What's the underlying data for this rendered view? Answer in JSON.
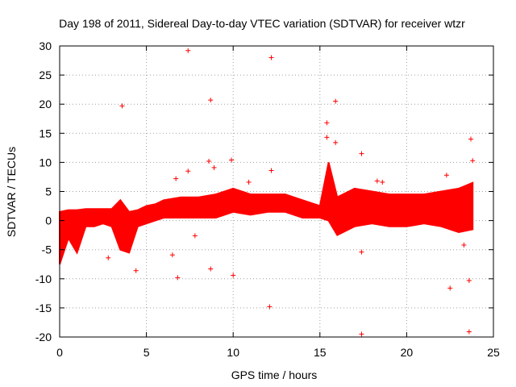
{
  "chart_data": {
    "type": "scatter",
    "title": "Day 198 of 2011, Sidereal Day-to-day VTEC variation (SDTVAR) for receiver wtzr",
    "xlabel": "GPS time / hours",
    "ylabel": "SDTVAR / TECUs",
    "xlim": [
      0,
      25
    ],
    "ylim": [
      -20,
      30
    ],
    "xticks": [
      0,
      5,
      10,
      15,
      20,
      25
    ],
    "yticks": [
      -20,
      -15,
      -10,
      -5,
      0,
      5,
      10,
      15,
      20,
      25,
      30
    ],
    "grid": true,
    "marker": "+",
    "color": "#ff0000",
    "series": [
      {
        "name": "SDTVAR",
        "dense_band": [
          {
            "x": 0.0,
            "lo": -7.5,
            "hi": 1.5
          },
          {
            "x": 0.5,
            "lo": -3.0,
            "hi": 1.8
          },
          {
            "x": 1.0,
            "lo": -5.5,
            "hi": 1.8
          },
          {
            "x": 1.5,
            "lo": -1.0,
            "hi": 2.0
          },
          {
            "x": 2.0,
            "lo": -1.0,
            "hi": 2.0
          },
          {
            "x": 2.5,
            "lo": -0.5,
            "hi": 2.0
          },
          {
            "x": 3.0,
            "lo": -1.0,
            "hi": 2.0
          },
          {
            "x": 3.5,
            "lo": -5.0,
            "hi": 3.5
          },
          {
            "x": 4.0,
            "lo": -5.5,
            "hi": 1.5
          },
          {
            "x": 4.5,
            "lo": -1.0,
            "hi": 1.8
          },
          {
            "x": 5.0,
            "lo": -0.5,
            "hi": 2.5
          },
          {
            "x": 5.5,
            "lo": 0.0,
            "hi": 2.8
          },
          {
            "x": 6.0,
            "lo": 0.5,
            "hi": 3.5
          },
          {
            "x": 7.0,
            "lo": 0.5,
            "hi": 4.0
          },
          {
            "x": 8.0,
            "lo": 0.5,
            "hi": 4.0
          },
          {
            "x": 9.0,
            "lo": 0.5,
            "hi": 4.5
          },
          {
            "x": 10.0,
            "lo": 1.5,
            "hi": 5.5
          },
          {
            "x": 11.0,
            "lo": 1.0,
            "hi": 4.5
          },
          {
            "x": 12.0,
            "lo": 1.5,
            "hi": 4.5
          },
          {
            "x": 13.0,
            "lo": 1.5,
            "hi": 4.5
          },
          {
            "x": 14.0,
            "lo": 0.5,
            "hi": 3.5
          },
          {
            "x": 15.0,
            "lo": 0.5,
            "hi": 2.5
          },
          {
            "x": 15.5,
            "lo": 0.0,
            "hi": 10.0
          },
          {
            "x": 16.0,
            "lo": -2.5,
            "hi": 4.0
          },
          {
            "x": 17.0,
            "lo": -1.0,
            "hi": 5.5
          },
          {
            "x": 18.0,
            "lo": -0.5,
            "hi": 5.0
          },
          {
            "x": 19.0,
            "lo": -1.0,
            "hi": 4.5
          },
          {
            "x": 20.0,
            "lo": -1.0,
            "hi": 4.5
          },
          {
            "x": 21.0,
            "lo": -0.5,
            "hi": 4.5
          },
          {
            "x": 22.0,
            "lo": -1.0,
            "hi": 5.0
          },
          {
            "x": 23.0,
            "lo": -2.0,
            "hi": 5.5
          },
          {
            "x": 23.8,
            "lo": -1.5,
            "hi": 6.5
          }
        ],
        "outliers": [
          {
            "x": 3.6,
            "y": 19.7
          },
          {
            "x": 7.4,
            "y": 29.2
          },
          {
            "x": 8.7,
            "y": 20.7
          },
          {
            "x": 12.2,
            "y": 28.0
          },
          {
            "x": 15.9,
            "y": 20.5
          },
          {
            "x": 15.4,
            "y": 16.8
          },
          {
            "x": 15.4,
            "y": 14.3
          },
          {
            "x": 15.9,
            "y": 13.4
          },
          {
            "x": 17.4,
            "y": 11.5
          },
          {
            "x": 23.7,
            "y": 14.0
          },
          {
            "x": 23.8,
            "y": 10.3
          },
          {
            "x": 9.9,
            "y": 10.4
          },
          {
            "x": 8.6,
            "y": 10.2
          },
          {
            "x": 8.9,
            "y": 9.1
          },
          {
            "x": 12.2,
            "y": 8.6
          },
          {
            "x": 7.4,
            "y": 8.5
          },
          {
            "x": 6.7,
            "y": 7.2
          },
          {
            "x": 18.3,
            "y": 6.8
          },
          {
            "x": 18.6,
            "y": 6.6
          },
          {
            "x": 10.9,
            "y": 6.6
          },
          {
            "x": 22.3,
            "y": 7.8
          },
          {
            "x": 2.8,
            "y": -6.4
          },
          {
            "x": 4.4,
            "y": -8.6
          },
          {
            "x": 6.5,
            "y": -5.9
          },
          {
            "x": 6.8,
            "y": -9.8
          },
          {
            "x": 8.7,
            "y": -8.3
          },
          {
            "x": 10.0,
            "y": -9.4
          },
          {
            "x": 12.1,
            "y": -14.8
          },
          {
            "x": 17.4,
            "y": -5.4
          },
          {
            "x": 17.4,
            "y": -19.5
          },
          {
            "x": 22.5,
            "y": -11.6
          },
          {
            "x": 23.6,
            "y": -10.3
          },
          {
            "x": 23.6,
            "y": -19.1
          },
          {
            "x": 23.3,
            "y": -4.2
          },
          {
            "x": 7.8,
            "y": -2.6
          }
        ]
      }
    ]
  }
}
